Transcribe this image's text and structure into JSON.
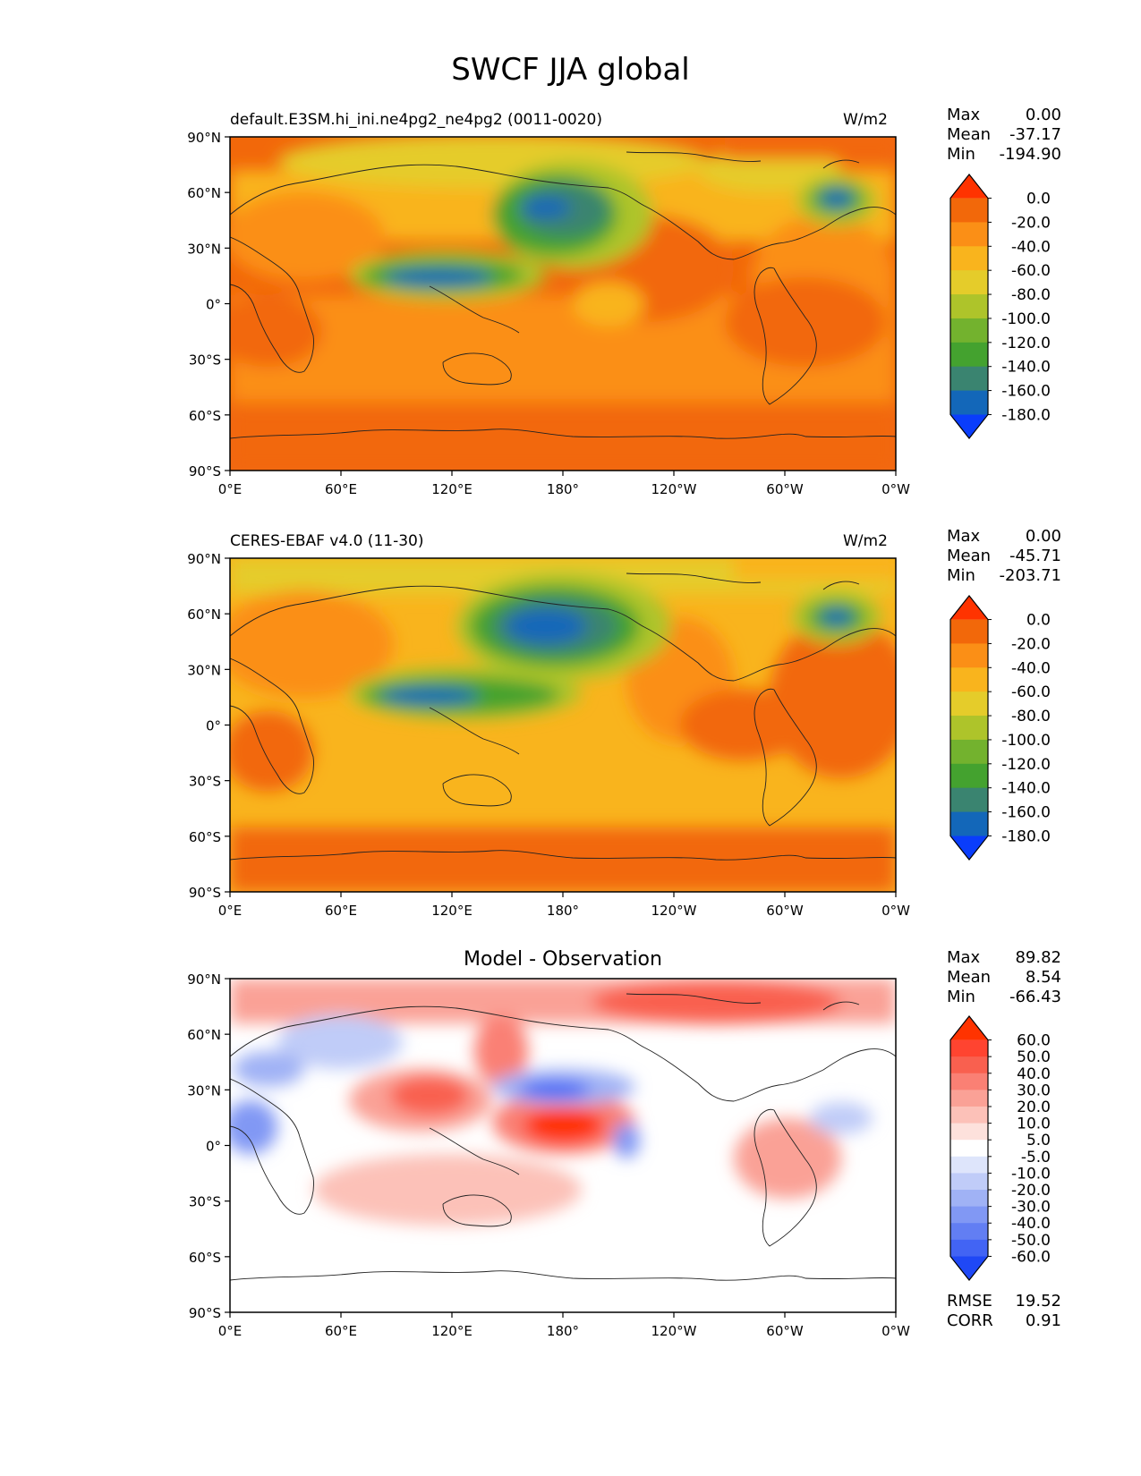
{
  "figure": {
    "title": "SWCF JJA global"
  },
  "lat_ticks": [
    "90°N",
    "60°N",
    "30°N",
    "0°",
    "30°S",
    "60°S",
    "90°S"
  ],
  "lon_ticks": [
    "0°E",
    "60°E",
    "120°E",
    "180°",
    "120°W",
    "60°W",
    "0°W"
  ],
  "panels": [
    {
      "left_title": "default.E3SM.hi_ini.ne4pg2_ne4pg2 (0011-0020)",
      "center_title": "",
      "units": "W/m2",
      "stats": [
        {
          "k": "Max",
          "v": "0.00"
        },
        {
          "k": "Mean",
          "v": "-37.17"
        },
        {
          "k": "Min",
          "v": "-194.90"
        }
      ],
      "colorbar_labels": [
        "0.0",
        "-20.0",
        "-40.0",
        "-60.0",
        "-80.0",
        "-100.0",
        "-120.0",
        "-140.0",
        "-160.0",
        "-180.0"
      ],
      "colorbar_colors": [
        "#ff3300",
        "#f2680a",
        "#fb8f16",
        "#f9b41d",
        "#e5cc2a",
        "#aec42a",
        "#73b22e",
        "#44a22f",
        "#3a8470",
        "#1367b9",
        "#0a3dfb"
      ]
    },
    {
      "left_title": "CERES-EBAF v4.0 (11-30)",
      "center_title": "",
      "units": "W/m2",
      "stats": [
        {
          "k": "Max",
          "v": "0.00"
        },
        {
          "k": "Mean",
          "v": "-45.71"
        },
        {
          "k": "Min",
          "v": "-203.71"
        }
      ],
      "colorbar_labels": [
        "0.0",
        "-20.0",
        "-40.0",
        "-60.0",
        "-80.0",
        "-100.0",
        "-120.0",
        "-140.0",
        "-160.0",
        "-180.0"
      ],
      "colorbar_colors": [
        "#ff3300",
        "#f2680a",
        "#fb8f16",
        "#f9b41d",
        "#e5cc2a",
        "#aec42a",
        "#73b22e",
        "#44a22f",
        "#3a8470",
        "#1367b9",
        "#0a3dfb"
      ]
    },
    {
      "left_title": "",
      "center_title": "Model - Observation",
      "units": "",
      "stats": [
        {
          "k": "Max",
          "v": "89.82"
        },
        {
          "k": "Mean",
          "v": "8.54"
        },
        {
          "k": "Min",
          "v": "-66.43"
        }
      ],
      "extra_stats": [
        {
          "k": "RMSE",
          "v": "19.52"
        },
        {
          "k": "CORR",
          "v": "0.91"
        }
      ],
      "colorbar_labels": [
        "60.0",
        "50.0",
        "40.0",
        "30.0",
        "20.0",
        "10.0",
        "5.0",
        "-5.0",
        "-10.0",
        "-20.0",
        "-30.0",
        "-40.0",
        "-50.0",
        "-60.0"
      ],
      "colorbar_colors": [
        "#ff3300",
        "#ff4430",
        "#f9604f",
        "#fa8074",
        "#faa196",
        "#fcc1b8",
        "#fde1dc",
        "#ffffff",
        "#dee5fb",
        "#c0ccf8",
        "#a0b2f5",
        "#8198f4",
        "#627ef3",
        "#4264f4",
        "#1f48f6"
      ]
    }
  ]
}
